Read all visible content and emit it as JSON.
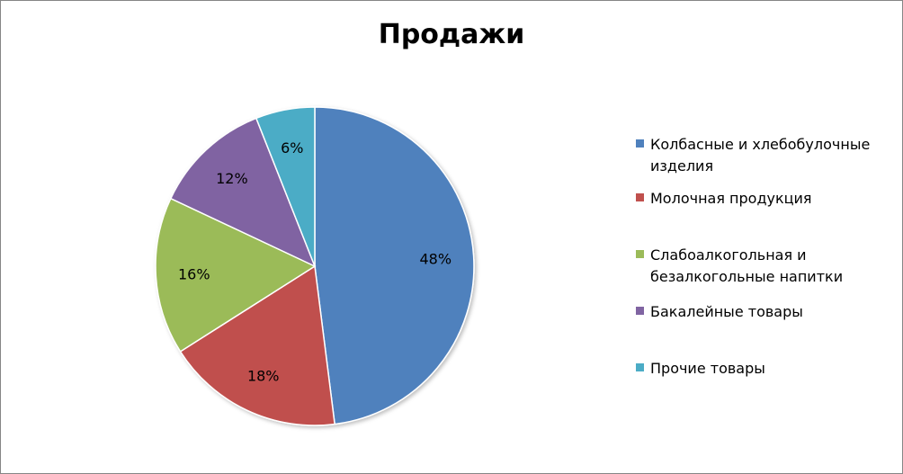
{
  "chart_data": {
    "type": "pie",
    "title": "Продажи",
    "categories": [
      "Колбасные и хлебобулочные изделия",
      "Молочная продукция",
      "Слабоалкогольная и безалкогольные напитки",
      "Бакалейные товары",
      "Прочие товары"
    ],
    "values": [
      48,
      18,
      16,
      12,
      6
    ],
    "data_labels": [
      "48%",
      "18%",
      "16%",
      "12%",
      "6%"
    ],
    "colors": [
      "#4F81BD",
      "#C0504D",
      "#9BBB59",
      "#8064A2",
      "#4BACC6"
    ],
    "legend_position": "right"
  }
}
